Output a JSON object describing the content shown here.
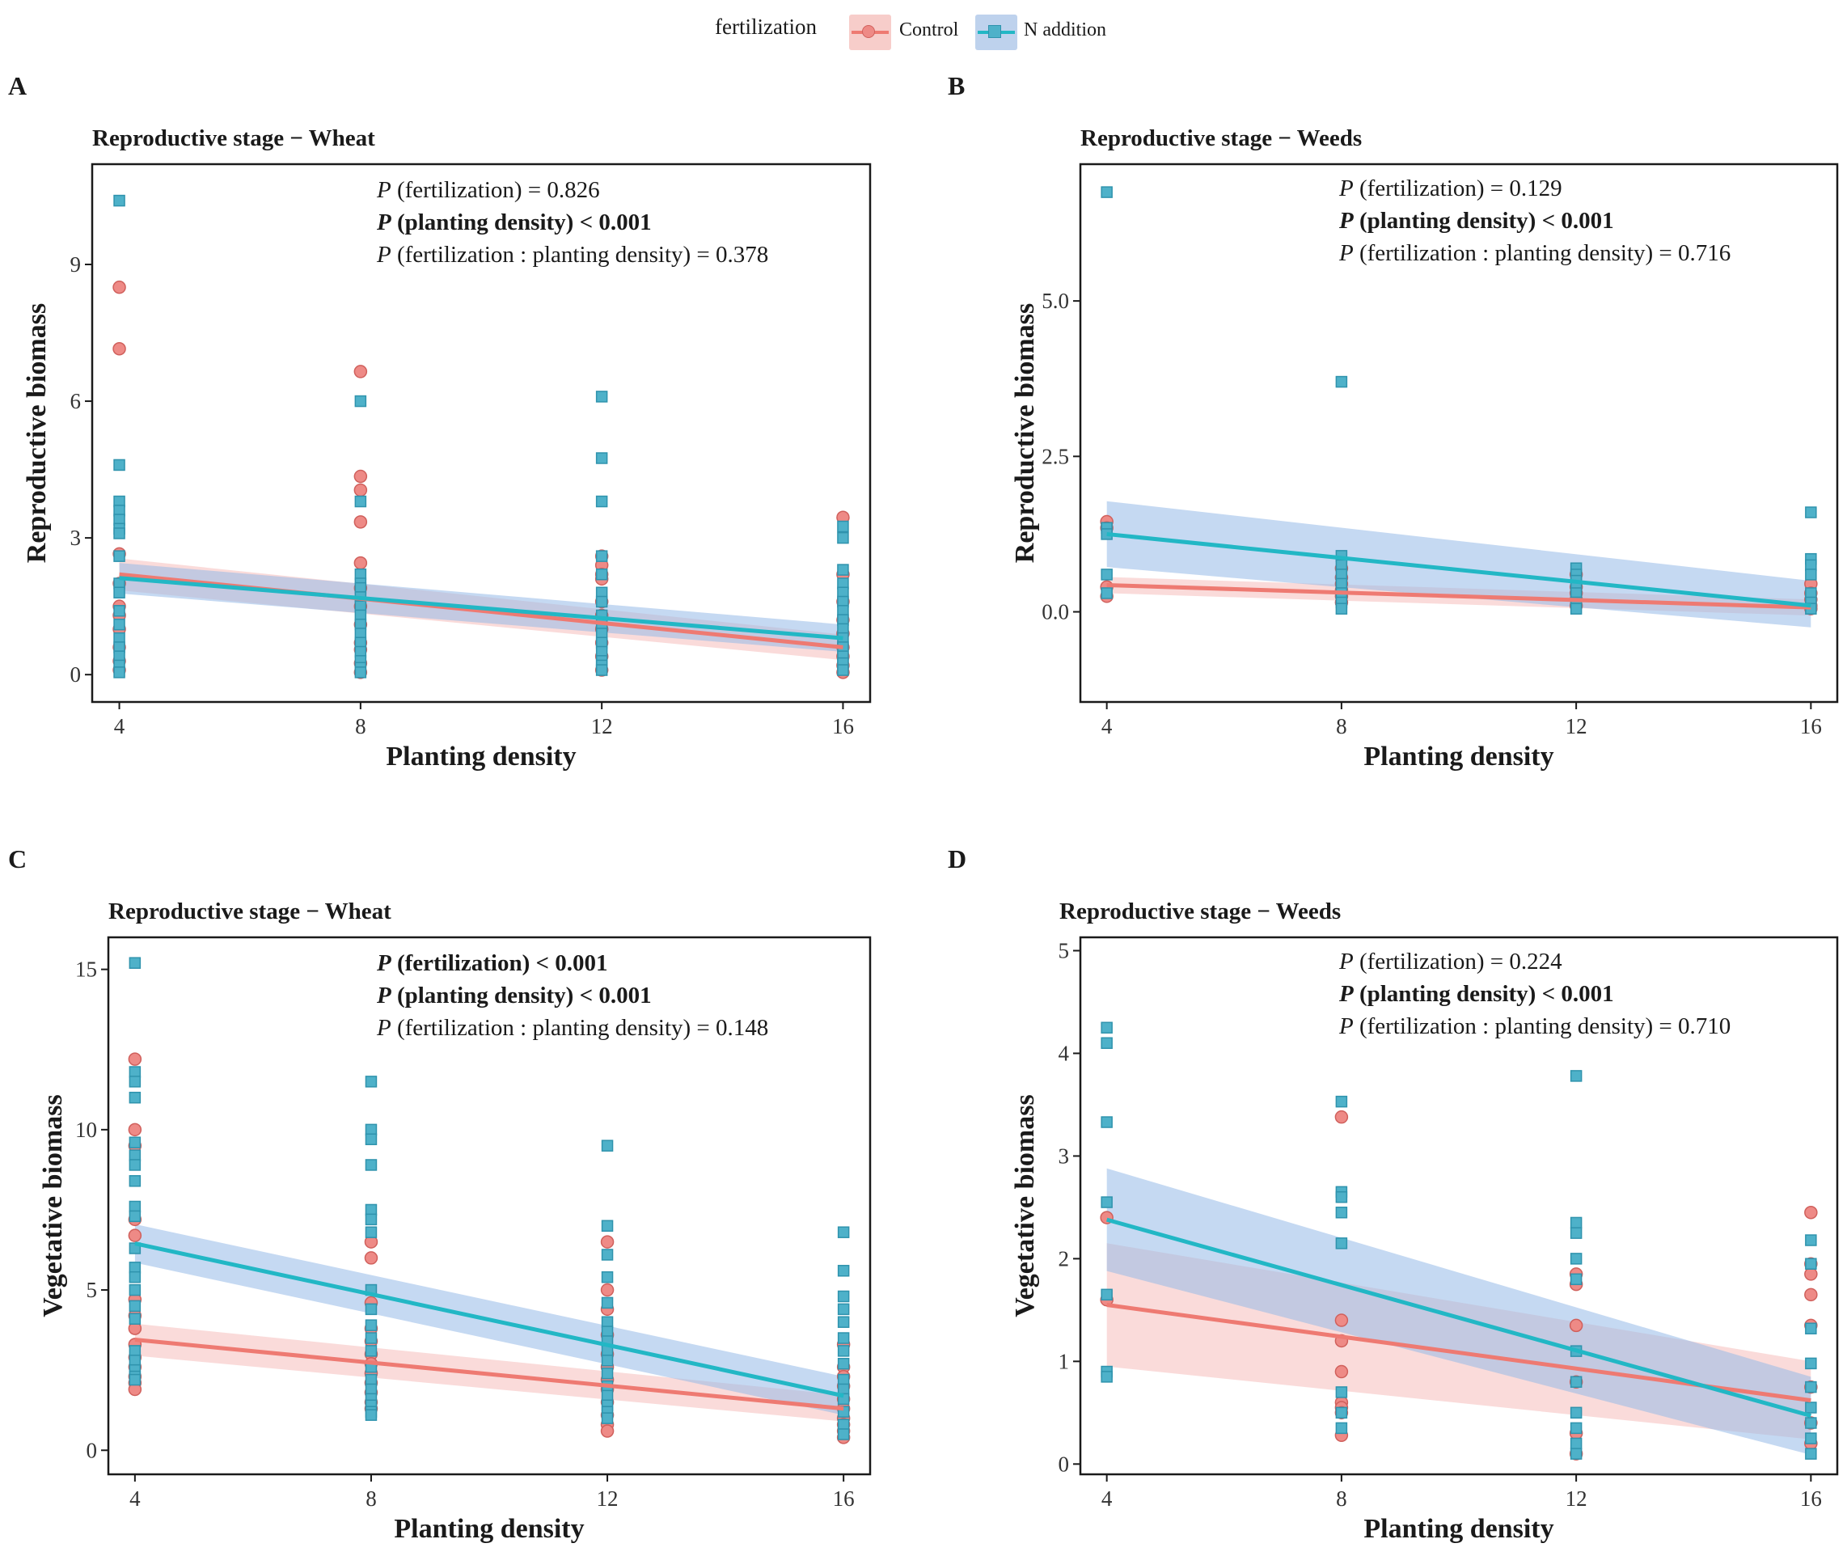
{
  "legend": {
    "title": "fertilization",
    "items": [
      {
        "label": "Control",
        "color": "#ee7a72",
        "fill": "#f7cdca",
        "point": "#ee8a86"
      },
      {
        "label": "N addition",
        "color": "#22b7c5",
        "fill": "#bed2ed",
        "point": "#4eb1c9"
      }
    ]
  },
  "chart_data": [
    {
      "type": "scatter",
      "panel": "A",
      "title": "Reproductive stage − Wheat",
      "xlabel": "Planting density",
      "ylabel": "Reproductive biomass",
      "xlim": [
        3.55,
        16.45
      ],
      "ylim": [
        -0.6,
        11.2
      ],
      "xticks": [
        "4",
        "8",
        "12",
        "16"
      ],
      "yticks": [
        "0",
        "3",
        "6",
        "9"
      ],
      "ytick_values": [
        0,
        3,
        6,
        9
      ],
      "annotations": [
        {
          "p": "P",
          "label": " (fertilization) = 0.826",
          "bold": false
        },
        {
          "p": "P",
          "label": " (planting density) < 0.001",
          "bold": true
        },
        {
          "p": "P",
          "label": " (fertilization : planting density) = 0.378",
          "bold": false
        }
      ],
      "series": [
        {
          "name": "Control",
          "x": [
            4,
            4,
            4,
            4,
            4,
            4,
            4,
            4,
            4,
            4,
            8,
            8,
            8,
            8,
            8,
            8,
            8,
            8,
            8,
            8,
            8,
            8,
            12,
            12,
            12,
            12,
            12,
            12,
            12,
            12,
            12,
            12,
            16,
            16,
            16,
            16,
            16,
            16,
            16,
            16,
            16
          ],
          "y": [
            8.5,
            7.15,
            2.65,
            2.0,
            1.5,
            1.3,
            1.0,
            0.6,
            0.3,
            0.1,
            6.65,
            4.35,
            4.05,
            3.35,
            2.45,
            1.9,
            1.5,
            1.1,
            0.7,
            0.55,
            0.25,
            0.05,
            2.6,
            2.4,
            2.2,
            2.1,
            1.6,
            1.3,
            1.0,
            0.7,
            0.4,
            0.1,
            3.45,
            2.2,
            1.6,
            1.2,
            0.9,
            0.6,
            0.4,
            0.2,
            0.05
          ],
          "line": {
            "x": [
              4,
              16
            ],
            "y": [
              2.2,
              0.6
            ]
          },
          "band": {
            "upper": [
              2.55,
              0.88
            ],
            "lower": [
              1.85,
              0.32
            ]
          }
        },
        {
          "name": "N addition",
          "x": [
            4,
            4,
            4,
            4,
            4,
            4,
            4,
            4,
            4,
            4,
            4,
            4,
            4,
            4,
            4,
            4,
            4,
            8,
            8,
            8,
            8,
            8,
            8,
            8,
            8,
            8,
            8,
            8,
            8,
            8,
            8,
            8,
            12,
            12,
            12,
            12,
            12,
            12,
            12,
            12,
            12,
            12,
            12,
            12,
            12,
            12,
            12,
            16,
            16,
            16,
            16,
            16,
            16,
            16,
            16,
            16,
            16,
            16,
            16,
            16,
            16
          ],
          "y": [
            10.4,
            4.6,
            3.8,
            3.6,
            3.4,
            3.2,
            3.1,
            2.6,
            2.0,
            1.8,
            1.4,
            1.1,
            0.8,
            0.6,
            0.4,
            0.2,
            0.05,
            6.0,
            3.8,
            2.2,
            2.0,
            1.9,
            1.7,
            1.5,
            1.3,
            1.1,
            0.9,
            0.7,
            0.5,
            0.3,
            0.15,
            0.05,
            6.1,
            4.75,
            3.8,
            2.6,
            2.2,
            1.8,
            1.6,
            1.3,
            1.1,
            0.9,
            0.7,
            0.5,
            0.3,
            0.2,
            0.1,
            3.25,
            3.0,
            2.3,
            2.0,
            1.8,
            1.6,
            1.4,
            1.2,
            1.0,
            0.8,
            0.6,
            0.4,
            0.25,
            0.1
          ],
          "line": {
            "x": [
              4,
              16
            ],
            "y": [
              2.12,
              0.8
            ]
          },
          "band": {
            "upper": [
              2.45,
              1.1
            ],
            "lower": [
              1.78,
              0.5
            ]
          }
        }
      ]
    },
    {
      "type": "scatter",
      "panel": "B",
      "title": "Reproductive stage − Weeds",
      "xlabel": "Planting density",
      "ylabel": "Reproductive biomass",
      "xlim": [
        3.55,
        16.45
      ],
      "ylim": [
        -1.45,
        7.2
      ],
      "xticks": [
        "4",
        "8",
        "12",
        "16"
      ],
      "yticks": [
        "0.0",
        "2.5",
        "5.0"
      ],
      "ytick_values": [
        0,
        2.5,
        5.0
      ],
      "annotations": [
        {
          "p": "P",
          "label": " (fertilization) = 0.129",
          "bold": false
        },
        {
          "p": "P",
          "label": " (planting density) < 0.001",
          "bold": true
        },
        {
          "p": "P",
          "label": " (fertilization : planting density) = 0.716",
          "bold": false
        }
      ],
      "series": [
        {
          "name": "Control",
          "x": [
            4,
            4,
            4,
            4,
            8,
            8,
            8,
            8,
            8,
            8,
            12,
            12,
            12,
            12,
            12,
            16,
            16,
            16,
            16,
            16
          ],
          "y": [
            1.45,
            1.35,
            0.4,
            0.25,
            0.7,
            0.55,
            0.45,
            0.35,
            0.25,
            0.15,
            0.6,
            0.4,
            0.3,
            0.2,
            0.1,
            0.45,
            0.3,
            0.2,
            0.1,
            0.05
          ],
          "line": {
            "x": [
              4,
              16
            ],
            "y": [
              0.43,
              0.07
            ]
          },
          "band": {
            "upper": [
              0.56,
              0.2
            ],
            "lower": [
              0.3,
              -0.06
            ]
          }
        },
        {
          "name": "N addition",
          "x": [
            4,
            4,
            4,
            4,
            4,
            8,
            8,
            8,
            8,
            8,
            8,
            8,
            8,
            12,
            12,
            12,
            12,
            12,
            12,
            12,
            16,
            16,
            16,
            16,
            16,
            16,
            16
          ],
          "y": [
            6.75,
            1.35,
            1.25,
            0.6,
            0.3,
            3.7,
            0.9,
            0.75,
            0.6,
            0.45,
            0.3,
            0.15,
            0.05,
            0.7,
            0.6,
            0.5,
            0.4,
            0.3,
            0.15,
            0.05,
            1.6,
            0.85,
            0.75,
            0.6,
            0.3,
            0.15,
            0.05
          ],
          "line": {
            "x": [
              4,
              16
            ],
            "y": [
              1.25,
              0.1
            ]
          },
          "band": {
            "upper": [
              1.78,
              0.5
            ],
            "lower": [
              0.72,
              -0.25
            ]
          }
        }
      ]
    },
    {
      "type": "scatter",
      "panel": "C",
      "title": "Reproductive stage − Wheat",
      "xlabel": "Planting density",
      "ylabel": "Vegetative biomass",
      "xlim": [
        3.55,
        16.45
      ],
      "ylim": [
        -0.75,
        16.0
      ],
      "xticks": [
        "4",
        "8",
        "12",
        "16"
      ],
      "yticks": [
        "0",
        "5",
        "10",
        "15"
      ],
      "ytick_values": [
        0,
        5,
        10,
        15
      ],
      "annotations": [
        {
          "p": "P",
          "label": " (fertilization) < 0.001",
          "bold": true
        },
        {
          "p": "P",
          "label": " (planting density) < 0.001",
          "bold": true
        },
        {
          "p": "P",
          "label": " (fertilization : planting density) = 0.148",
          "bold": false
        }
      ],
      "series": [
        {
          "name": "Control",
          "x": [
            4,
            4,
            4,
            4,
            4,
            4,
            4,
            4,
            4,
            4,
            4,
            4,
            4,
            4,
            8,
            8,
            8,
            8,
            8,
            8,
            8,
            8,
            8,
            8,
            8,
            8,
            12,
            12,
            12,
            12,
            12,
            12,
            12,
            12,
            12,
            12,
            12,
            12,
            16,
            16,
            16,
            16,
            16,
            16,
            16,
            16,
            16,
            16
          ],
          "y": [
            12.2,
            10.0,
            9.5,
            7.2,
            6.7,
            4.7,
            4.2,
            3.8,
            3.3,
            2.9,
            2.6,
            2.3,
            2.1,
            1.9,
            6.5,
            6.0,
            4.6,
            3.8,
            3.4,
            3.0,
            2.7,
            2.4,
            2.1,
            1.8,
            1.5,
            1.3,
            6.5,
            5.0,
            4.4,
            3.6,
            3.0,
            2.6,
            2.2,
            1.9,
            1.5,
            1.1,
            0.8,
            0.6,
            3.3,
            2.6,
            2.3,
            2.0,
            1.6,
            1.3,
            1.0,
            0.8,
            0.6,
            0.4
          ],
          "line": {
            "x": [
              4,
              16
            ],
            "y": [
              3.45,
              1.3
            ]
          },
          "band": {
            "upper": [
              3.95,
              1.72
            ],
            "lower": [
              2.95,
              0.9
            ]
          }
        },
        {
          "name": "N addition",
          "x": [
            4,
            4,
            4,
            4,
            4,
            4,
            4,
            4,
            4,
            4,
            4,
            4,
            4,
            4,
            4,
            4,
            4,
            4,
            4,
            4,
            4,
            8,
            8,
            8,
            8,
            8,
            8,
            8,
            8,
            8,
            8,
            8,
            8,
            8,
            8,
            8,
            8,
            8,
            8,
            8,
            12,
            12,
            12,
            12,
            12,
            12,
            12,
            12,
            12,
            12,
            12,
            12,
            12,
            12,
            12,
            12,
            16,
            16,
            16,
            16,
            16,
            16,
            16,
            16,
            16,
            16,
            16,
            16,
            16,
            16
          ],
          "y": [
            15.2,
            11.8,
            11.5,
            11.0,
            9.6,
            9.2,
            8.9,
            8.4,
            7.6,
            7.3,
            6.3,
            5.7,
            5.4,
            5.0,
            4.5,
            4.1,
            3.1,
            2.8,
            2.5,
            2.3,
            2.2,
            11.5,
            10.0,
            9.7,
            8.9,
            7.5,
            7.2,
            6.8,
            5.0,
            4.4,
            3.9,
            3.5,
            3.1,
            2.6,
            2.2,
            1.9,
            1.6,
            1.4,
            1.2,
            1.1,
            9.5,
            7.0,
            6.1,
            5.4,
            4.6,
            4.0,
            3.7,
            3.4,
            3.1,
            2.8,
            2.4,
            2.0,
            1.7,
            1.4,
            1.2,
            1.0,
            6.8,
            5.6,
            4.8,
            4.4,
            4.0,
            3.5,
            3.1,
            2.7,
            2.2,
            1.9,
            1.6,
            1.2,
            0.8,
            0.5
          ],
          "line": {
            "x": [
              4,
              16
            ],
            "y": [
              6.45,
              1.7
            ]
          },
          "band": {
            "upper": [
              7.05,
              2.3
            ],
            "lower": [
              5.85,
              1.1
            ]
          }
        }
      ]
    },
    {
      "type": "scatter",
      "panel": "D",
      "title": "Reproductive stage − Weeds",
      "xlabel": "Planting density",
      "ylabel": "Vegetative biomass",
      "xlim": [
        3.55,
        16.45
      ],
      "ylim": [
        -0.1,
        5.13
      ],
      "xticks": [
        "4",
        "8",
        "12",
        "16"
      ],
      "yticks": [
        "0",
        "1",
        "2",
        "3",
        "4",
        "5"
      ],
      "ytick_values": [
        0,
        1,
        2,
        3,
        4,
        5
      ],
      "annotations": [
        {
          "p": "P",
          "label": " (fertilization) = 0.224",
          "bold": false
        },
        {
          "p": "P",
          "label": " (planting density) < 0.001",
          "bold": true
        },
        {
          "p": "P",
          "label": " (fertilization : planting density) = 0.710",
          "bold": false
        }
      ],
      "series": [
        {
          "name": "Control",
          "x": [
            4,
            4,
            8,
            8,
            8,
            8,
            8,
            8,
            8,
            8,
            12,
            12,
            12,
            12,
            12,
            12,
            16,
            16,
            16,
            16,
            16,
            16,
            16,
            16
          ],
          "y": [
            2.4,
            1.6,
            3.38,
            1.4,
            1.2,
            0.9,
            0.6,
            0.55,
            0.5,
            0.28,
            1.85,
            1.75,
            1.35,
            0.8,
            0.3,
            0.1,
            2.45,
            1.95,
            1.85,
            1.65,
            1.35,
            0.75,
            0.4,
            0.2
          ],
          "line": {
            "x": [
              4,
              16
            ],
            "y": [
              1.55,
              0.62
            ]
          },
          "band": {
            "upper": [
              2.15,
              1.0
            ],
            "lower": [
              0.95,
              0.24
            ]
          }
        },
        {
          "name": "N addition",
          "x": [
            4,
            4,
            4,
            4,
            4,
            4,
            4,
            8,
            8,
            8,
            8,
            8,
            8,
            8,
            8,
            12,
            12,
            12,
            12,
            12,
            12,
            12,
            12,
            12,
            12,
            12,
            16,
            16,
            16,
            16,
            16,
            16,
            16,
            16,
            16
          ],
          "y": [
            4.25,
            4.1,
            3.33,
            2.55,
            1.65,
            0.9,
            0.85,
            3.53,
            2.65,
            2.6,
            2.45,
            2.15,
            0.7,
            0.5,
            0.35,
            3.78,
            2.35,
            2.25,
            2.0,
            1.8,
            1.1,
            0.8,
            0.5,
            0.35,
            0.2,
            0.1,
            2.18,
            1.95,
            1.32,
            0.98,
            0.75,
            0.55,
            0.4,
            0.25,
            0.1
          ],
          "line": {
            "x": [
              4,
              16
            ],
            "y": [
              2.38,
              0.47
            ]
          },
          "band": {
            "upper": [
              2.88,
              0.85
            ],
            "lower": [
              1.88,
              0.09
            ]
          }
        }
      ]
    }
  ]
}
